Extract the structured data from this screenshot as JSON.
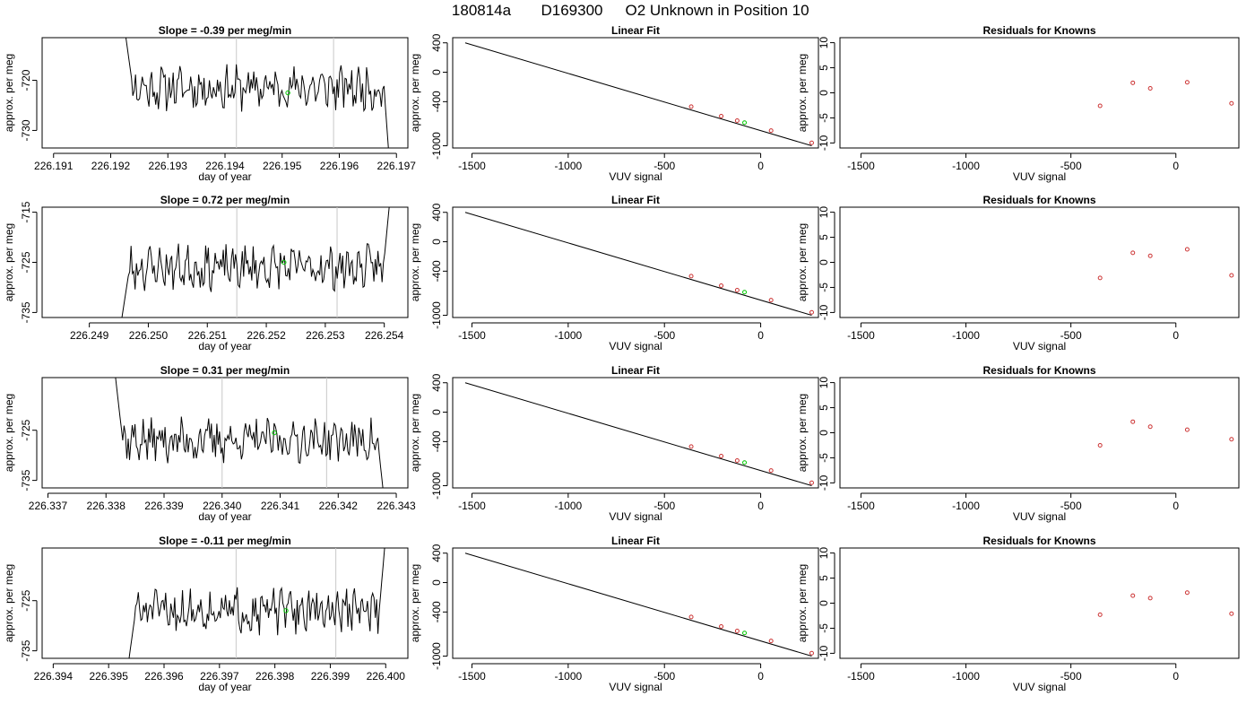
{
  "header": {
    "run_id": "180814a",
    "sample_id": "D169300",
    "description": "O2 Unknown in Position  10"
  },
  "colors": {
    "axis": "#000000",
    "trace": "#000000",
    "marker_lines": "#c8c8c8",
    "unknown_point": "#00c800",
    "known_point": "#cc3333"
  },
  "chart_data": [
    {
      "type": "line",
      "row": 1,
      "panel": "trace",
      "title": "Slope =  -0.39  per meg/min",
      "xlabel": "day of year",
      "ylabel": "approx. per meg",
      "xlim": [
        226.1908,
        226.1972
      ],
      "ylim": [
        -733.5,
        -711.5
      ],
      "xticks": [
        "226.191",
        "226.192",
        "226.193",
        "226.194",
        "226.195",
        "226.196",
        "226.197"
      ],
      "yticks": [
        "-720",
        "-730"
      ],
      "markers": [
        226.1942,
        226.1959
      ],
      "trace_window": [
        226.1922,
        226.1969
      ],
      "baseline": -721.5,
      "ends": [
        -706,
        -740
      ],
      "unknown_point": [
        226.1951,
        -722.5
      ],
      "seed": 11
    },
    {
      "type": "scatter",
      "row": 1,
      "panel": "fit",
      "title": "Linear Fit",
      "xlabel": "VUV signal",
      "ylabel": "approx. per meg",
      "xlim": [
        -1600,
        300
      ],
      "ylim": [
        -1030,
        470
      ],
      "xticks": [
        "-1500",
        "-1000",
        "-500",
        "0"
      ],
      "yticks": [
        "400",
        "0",
        "-400",
        "-1000"
      ],
      "line": [
        [
          -1535,
          400
        ],
        [
          265,
          -1000
        ]
      ],
      "knowns": [
        [
          -361,
          -468
        ],
        [
          -205,
          -597
        ],
        [
          -122,
          -658
        ],
        [
          54,
          -794
        ],
        [
          265,
          -960
        ]
      ],
      "unknown": [
        -84,
        -686
      ]
    },
    {
      "type": "scatter",
      "row": 1,
      "panel": "residuals",
      "title": "Residuals for Knowns",
      "xlabel": "VUV signal",
      "ylabel": "approx. per meg",
      "xlim": [
        -1600,
        300
      ],
      "ylim": [
        -11,
        11
      ],
      "xticks": [
        "-1500",
        "-1000",
        "-500",
        "0"
      ],
      "yticks": [
        "10",
        "5",
        "0",
        "-5",
        "-10"
      ],
      "points": [
        [
          -361,
          -2.6
        ],
        [
          -205,
          2.0
        ],
        [
          -122,
          0.9
        ],
        [
          54,
          2.1
        ],
        [
          265,
          -2.1
        ]
      ]
    },
    {
      "type": "line",
      "row": 2,
      "panel": "trace",
      "title": "Slope =  0.72  per meg/min",
      "xlabel": "day of year",
      "ylabel": "approx. per meg",
      "xlim": [
        226.2482,
        226.2544
      ],
      "ylim": [
        -736,
        -714
      ],
      "xticks": [
        "226.249",
        "226.250",
        "226.251",
        "226.252",
        "226.253",
        "226.254"
      ],
      "yticks": [
        "-715",
        "-725",
        "-735"
      ],
      "markers": [
        226.2515,
        226.2532
      ],
      "trace_window": [
        226.2495,
        226.2541
      ],
      "baseline": -726,
      "ends": [
        -740,
        -712
      ],
      "unknown_point": [
        226.2523,
        -725
      ],
      "seed": 23
    },
    {
      "type": "scatter",
      "row": 2,
      "panel": "fit",
      "title": "Linear Fit",
      "xlabel": "VUV signal",
      "ylabel": "approx. per meg",
      "xlim": [
        -1600,
        300
      ],
      "ylim": [
        -1030,
        470
      ],
      "xticks": [
        "-1500",
        "-1000",
        "-500",
        "0"
      ],
      "yticks": [
        "400",
        "0",
        "-400",
        "-1000"
      ],
      "line": [
        [
          -1535,
          400
        ],
        [
          265,
          -1000
        ]
      ],
      "knowns": [
        [
          -361,
          -468
        ],
        [
          -205,
          -597
        ],
        [
          -122,
          -658
        ],
        [
          54,
          -794
        ],
        [
          265,
          -960
        ]
      ],
      "unknown": [
        -84,
        -686
      ]
    },
    {
      "type": "scatter",
      "row": 2,
      "panel": "residuals",
      "title": "Residuals for Knowns",
      "xlabel": "VUV signal",
      "ylabel": "approx. per meg",
      "xlim": [
        -1600,
        300
      ],
      "ylim": [
        -11,
        11
      ],
      "xticks": [
        "-1500",
        "-1000",
        "-500",
        "0"
      ],
      "yticks": [
        "10",
        "5",
        "0",
        "-5",
        "-10"
      ],
      "points": [
        [
          -361,
          -3.1
        ],
        [
          -205,
          1.9
        ],
        [
          -122,
          1.3
        ],
        [
          54,
          2.6
        ],
        [
          265,
          -2.6
        ]
      ]
    },
    {
      "type": "line",
      "row": 3,
      "panel": "trace",
      "title": "Slope =  0.31  per meg/min",
      "xlabel": "day of year",
      "ylabel": "approx. per meg",
      "xlim": [
        226.3369,
        226.3432
      ],
      "ylim": [
        -736.5,
        -714.5
      ],
      "xticks": [
        "226.337",
        "226.338",
        "226.339",
        "226.340",
        "226.341",
        "226.342",
        "226.343"
      ],
      "yticks": [
        "-725",
        "-735"
      ],
      "markers": [
        226.34,
        226.3418
      ],
      "trace_window": [
        226.3381,
        226.3428
      ],
      "baseline": -727,
      "ends": [
        -708,
        -740
      ],
      "unknown_point": [
        226.3409,
        -725.5
      ],
      "seed": 37
    },
    {
      "type": "scatter",
      "row": 3,
      "panel": "fit",
      "title": "Linear Fit",
      "xlabel": "VUV signal",
      "ylabel": "approx. per meg",
      "xlim": [
        -1600,
        300
      ],
      "ylim": [
        -1030,
        470
      ],
      "xticks": [
        "-1500",
        "-1000",
        "-500",
        "0"
      ],
      "yticks": [
        "400",
        "0",
        "-400",
        "-1000"
      ],
      "line": [
        [
          -1535,
          400
        ],
        [
          265,
          -1000
        ]
      ],
      "knowns": [
        [
          -361,
          -468
        ],
        [
          -205,
          -597
        ],
        [
          -122,
          -658
        ],
        [
          54,
          -794
        ],
        [
          265,
          -960
        ]
      ],
      "unknown": [
        -84,
        -686
      ]
    },
    {
      "type": "scatter",
      "row": 3,
      "panel": "residuals",
      "title": "Residuals for Knowns",
      "xlabel": "VUV signal",
      "ylabel": "approx. per meg",
      "xlim": [
        -1600,
        300
      ],
      "ylim": [
        -11,
        11
      ],
      "xticks": [
        "-1500",
        "-1000",
        "-500",
        "0"
      ],
      "yticks": [
        "10",
        "5",
        "0",
        "-5",
        "-10"
      ],
      "points": [
        [
          -361,
          -2.5
        ],
        [
          -205,
          2.2
        ],
        [
          -122,
          1.2
        ],
        [
          54,
          0.6
        ],
        [
          265,
          -1.3
        ]
      ]
    },
    {
      "type": "line",
      "row": 4,
      "panel": "trace",
      "title": "Slope =  -0.11  per meg/min",
      "xlabel": "day of year",
      "ylabel": "approx. per meg",
      "xlim": [
        226.3938,
        226.4004
      ],
      "ylim": [
        -736.5,
        -714.5
      ],
      "xticks": [
        "226.394",
        "226.395",
        "226.396",
        "226.397",
        "226.398",
        "226.399",
        "226.400"
      ],
      "yticks": [
        "-725",
        "-735"
      ],
      "markers": [
        226.3973,
        226.3991
      ],
      "trace_window": [
        226.3953,
        226.4
      ],
      "baseline": -727,
      "ends": [
        -742,
        -712
      ],
      "unknown_point": [
        226.3982,
        -727
      ],
      "seed": 51
    },
    {
      "type": "scatter",
      "row": 4,
      "panel": "fit",
      "title": "Linear Fit",
      "xlabel": "VUV signal",
      "ylabel": "approx. per meg",
      "xlim": [
        -1600,
        300
      ],
      "ylim": [
        -1030,
        470
      ],
      "xticks": [
        "-1500",
        "-1000",
        "-500",
        "0"
      ],
      "yticks": [
        "400",
        "0",
        "-400",
        "-1000"
      ],
      "line": [
        [
          -1535,
          400
        ],
        [
          265,
          -1000
        ]
      ],
      "knowns": [
        [
          -361,
          -468
        ],
        [
          -205,
          -597
        ],
        [
          -122,
          -658
        ],
        [
          54,
          -794
        ],
        [
          265,
          -960
        ]
      ],
      "unknown": [
        -84,
        -686
      ]
    },
    {
      "type": "scatter",
      "row": 4,
      "panel": "residuals",
      "title": "Residuals for Knowns",
      "xlabel": "VUV signal",
      "ylabel": "approx. per meg",
      "xlim": [
        -1600,
        300
      ],
      "ylim": [
        -11,
        11
      ],
      "xticks": [
        "-1500",
        "-1000",
        "-500",
        "0"
      ],
      "yticks": [
        "10",
        "5",
        "0",
        "-5",
        "-10"
      ],
      "points": [
        [
          -361,
          -2.3
        ],
        [
          -205,
          1.5
        ],
        [
          -122,
          1.0
        ],
        [
          54,
          2.1
        ],
        [
          265,
          -2.1
        ]
      ]
    }
  ]
}
